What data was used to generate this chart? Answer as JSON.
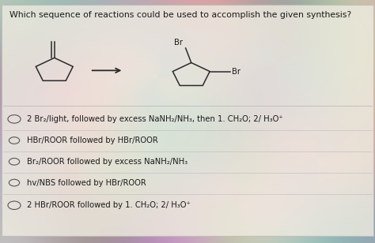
{
  "title": "Which sequence of reactions could be used to accomplish the given synthesis?",
  "box_bg": "#e8e4d8",
  "border_color": "#bbbbbb",
  "text_color": "#1a1a1a",
  "options": [
    "2 Br₂/light, followed by excess NaNH₂/NH₃, then 1. CH₂O; 2/ H₃O⁺",
    "HBr/ROOR followed by HBr/ROOR",
    "Br₂/ROOR followed by excess NaNH₂/NH₃",
    "hv/NBS followed by HBr/ROOR",
    "2 HBr/ROOR followed by 1. CH₂O; 2/ H₃O⁺"
  ],
  "title_fontsize": 7.8,
  "option_fontsize": 7.2,
  "divider_color": "#bbbbbb"
}
